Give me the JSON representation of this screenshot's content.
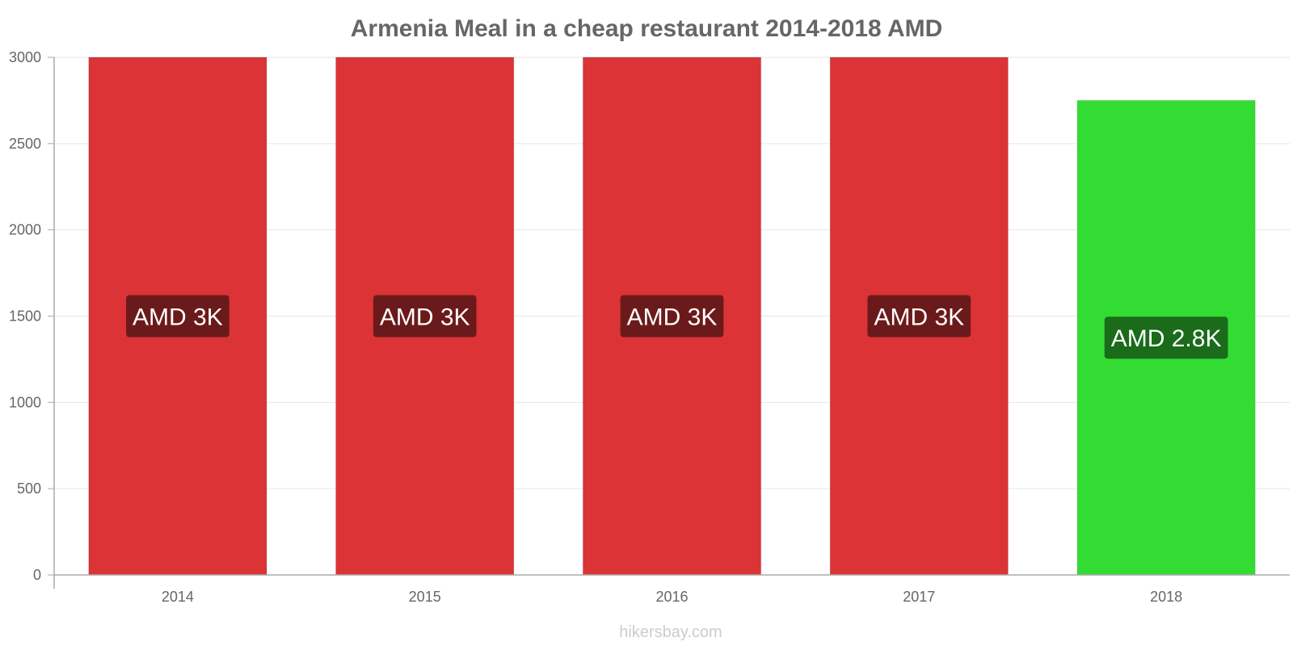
{
  "chart_data": {
    "type": "bar",
    "title": "Armenia Meal in a cheap restaurant 2014-2018 AMD",
    "categories": [
      "2014",
      "2015",
      "2016",
      "2017",
      "2018"
    ],
    "values": [
      3000,
      3000,
      3000,
      3000,
      2750
    ],
    "data_labels": [
      "AMD 3K",
      "AMD 3K",
      "AMD 3K",
      "AMD 3K",
      "AMD 2.8K"
    ],
    "bar_colors": [
      "#dc3336",
      "#dc3336",
      "#dc3336",
      "#dc3336",
      "#33dc33"
    ],
    "label_bg_colors": [
      "#6b1a1b",
      "#6b1a1b",
      "#6b1a1b",
      "#6b1a1b",
      "#1a6b1a"
    ],
    "ylim": [
      0,
      3000
    ],
    "yticks": [
      0,
      500,
      1000,
      1500,
      2000,
      2500,
      3000
    ],
    "xlabel": "",
    "ylabel": "",
    "grid": true
  },
  "footer": "hikersbay.com"
}
